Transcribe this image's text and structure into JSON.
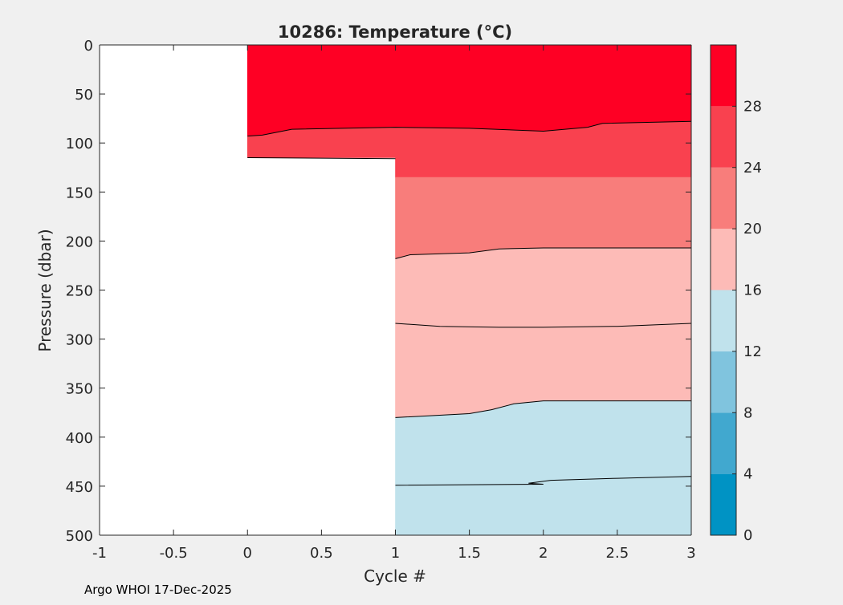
{
  "footer": "Argo WHOI 17-Dec-2025",
  "chart_data": {
    "type": "contourf",
    "title": "10286:  Temperature (°C)",
    "xlabel": "Cycle #",
    "ylabel": "Pressure (dbar)",
    "xlim": [
      -1,
      3
    ],
    "ylim": [
      0,
      500
    ],
    "y_reversed": true,
    "x_ticks": [
      -1,
      -0.5,
      0,
      0.5,
      1,
      1.5,
      2,
      2.5,
      3
    ],
    "x_tick_labels": [
      "-1",
      "-0.5",
      "0",
      "0.5",
      "1",
      "1.5",
      "2",
      "2.5",
      "3"
    ],
    "y_ticks": [
      0,
      50,
      100,
      150,
      200,
      250,
      300,
      350,
      400,
      450,
      500
    ],
    "y_tick_labels": [
      "0",
      "50",
      "100",
      "150",
      "200",
      "250",
      "300",
      "350",
      "400",
      "450",
      "500"
    ],
    "grid": false,
    "colorbar": {
      "ticks": [
        0,
        4,
        8,
        12,
        16,
        20,
        24,
        28
      ],
      "tick_labels": [
        "0",
        "4",
        "8",
        "12",
        "16",
        "20",
        "24",
        "28"
      ],
      "range": [
        0,
        32
      ],
      "bins": [
        {
          "from": 0,
          "to": 4,
          "color": "#0093c4"
        },
        {
          "from": 4,
          "to": 8,
          "color": "#41a8cf"
        },
        {
          "from": 8,
          "to": 12,
          "color": "#80c4de"
        },
        {
          "from": 12,
          "to": 16,
          "color": "#c0e2ec"
        },
        {
          "from": 16,
          "to": 20,
          "color": "#fdbbb7"
        },
        {
          "from": 20,
          "to": 24,
          "color": "#f87d7b"
        },
        {
          "from": 24,
          "to": 28,
          "color": "#f9414f"
        },
        {
          "from": 28,
          "to": 32,
          "color": "#fe0024"
        }
      ]
    },
    "bands": [
      {
        "color": "#fe0024",
        "top": [
          [
            0,
            0
          ],
          [
            3,
            0
          ]
        ],
        "bottom": [
          [
            0,
            93
          ],
          [
            0.1,
            92
          ],
          [
            0.3,
            86
          ],
          [
            1,
            84
          ],
          [
            1.5,
            85
          ],
          [
            2,
            88
          ],
          [
            2.3,
            84
          ],
          [
            2.4,
            80
          ],
          [
            3,
            78
          ]
        ]
      },
      {
        "color": "#f9414f",
        "top": [
          [
            0,
            93
          ],
          [
            0.1,
            92
          ],
          [
            0.3,
            86
          ],
          [
            1,
            84
          ],
          [
            1.5,
            85
          ],
          [
            2,
            88
          ],
          [
            2.3,
            84
          ],
          [
            2.4,
            80
          ],
          [
            3,
            78
          ]
        ],
        "bottom": [
          [
            0,
            115
          ],
          [
            1,
            115
          ],
          [
            1,
            135
          ],
          [
            3,
            135
          ],
          [
            3,
            140
          ]
        ]
      },
      {
        "color": "#f87d7b",
        "top": [
          [
            1,
            135
          ],
          [
            3,
            135
          ],
          [
            3,
            140
          ]
        ],
        "bottom": [
          [
            1,
            218
          ],
          [
            1.1,
            214
          ],
          [
            1.5,
            212
          ],
          [
            1.7,
            208
          ],
          [
            2,
            207
          ],
          [
            3,
            207
          ]
        ]
      },
      {
        "color": "#fdbbb7",
        "top": [
          [
            1,
            218
          ],
          [
            1.1,
            214
          ],
          [
            1.5,
            212
          ],
          [
            1.7,
            208
          ],
          [
            2,
            207
          ],
          [
            3,
            207
          ]
        ],
        "bottom": [
          [
            1,
            380
          ],
          [
            1.5,
            376
          ],
          [
            1.65,
            372
          ],
          [
            1.8,
            366
          ],
          [
            2,
            363
          ],
          [
            3,
            363
          ]
        ]
      },
      {
        "color": "#c0e2ec",
        "top": [
          [
            1,
            380
          ],
          [
            1.5,
            376
          ],
          [
            1.65,
            372
          ],
          [
            1.8,
            366
          ],
          [
            2,
            363
          ],
          [
            3,
            363
          ]
        ],
        "bottom": [
          [
            1,
            500
          ],
          [
            3,
            500
          ]
        ]
      }
    ],
    "contours": [
      {
        "level": 28,
        "points": [
          [
            0,
            93
          ],
          [
            0.1,
            92
          ],
          [
            0.3,
            86
          ],
          [
            1,
            84
          ],
          [
            1.5,
            85
          ],
          [
            2,
            88
          ],
          [
            2.3,
            84
          ],
          [
            2.4,
            80
          ],
          [
            3,
            78
          ]
        ]
      },
      {
        "level": 24,
        "points": [
          [
            0,
            115
          ],
          [
            1,
            116
          ]
        ]
      },
      {
        "level": 20,
        "points": [
          [
            1,
            218
          ],
          [
            1.1,
            214
          ],
          [
            1.5,
            212
          ],
          [
            1.7,
            208
          ],
          [
            2,
            207
          ],
          [
            3,
            207
          ]
        ]
      },
      {
        "level": 18,
        "points": [
          [
            1,
            284
          ],
          [
            1.3,
            287
          ],
          [
            1.7,
            288
          ],
          [
            2,
            288
          ],
          [
            2.5,
            287
          ],
          [
            3,
            284
          ]
        ]
      },
      {
        "level": 16,
        "points": [
          [
            1,
            380
          ],
          [
            1.5,
            376
          ],
          [
            1.65,
            372
          ],
          [
            1.8,
            366
          ],
          [
            2,
            363
          ],
          [
            3,
            363
          ]
        ]
      },
      {
        "level": 14,
        "points": [
          [
            1,
            449
          ],
          [
            2,
            448
          ],
          [
            1.9,
            447
          ],
          [
            2.05,
            444
          ],
          [
            2.5,
            442
          ],
          [
            3,
            440
          ]
        ]
      }
    ]
  }
}
